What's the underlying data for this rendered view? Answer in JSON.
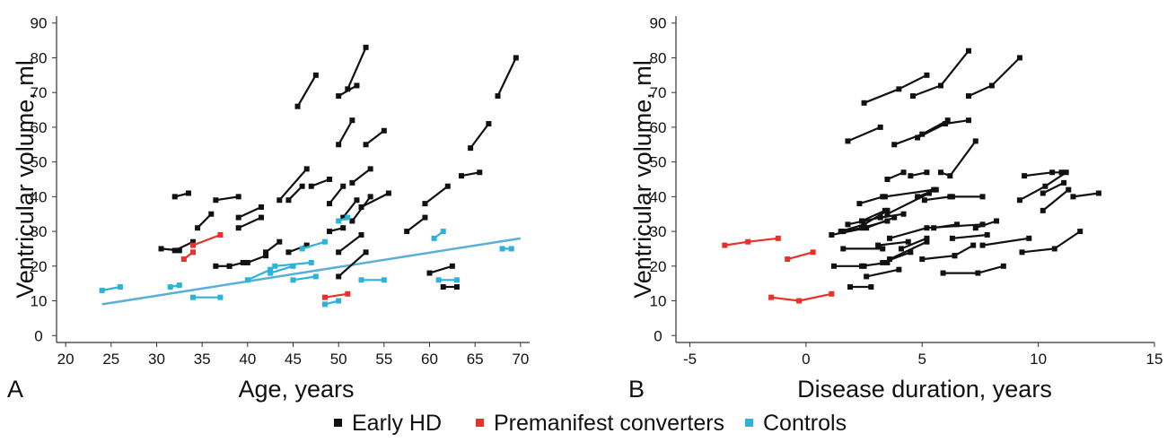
{
  "colors": {
    "early": "#111111",
    "converter": "#e8312a",
    "control": "#2cb3d9",
    "trend": "#5aafd9",
    "axis": "#333333"
  },
  "legend": [
    {
      "key": "early",
      "label": "Early HD"
    },
    {
      "key": "converter",
      "label": "Premanifest converters"
    },
    {
      "key": "control",
      "label": "Controls"
    }
  ],
  "chart_data": [
    {
      "type": "line",
      "panel_label": "A",
      "xlabel": "Age, years",
      "ylabel": "Ventricular volume, ml",
      "xlim": [
        19,
        71
      ],
      "ylim": [
        -2,
        92
      ],
      "xticks": [
        20,
        25,
        30,
        35,
        40,
        45,
        50,
        55,
        60,
        65,
        70
      ],
      "yticks": [
        0,
        10,
        20,
        30,
        40,
        50,
        60,
        70,
        80,
        90
      ],
      "trend_line": {
        "group": "control",
        "x": [
          24,
          70
        ],
        "y": [
          9,
          28
        ]
      },
      "series": [
        {
          "group": "early",
          "x": [
            30.5,
            32.5
          ],
          "y": [
            25,
            24.5
          ]
        },
        {
          "group": "early",
          "x": [
            32,
            34
          ],
          "y": [
            24.5,
            27
          ]
        },
        {
          "group": "early",
          "x": [
            32,
            33.5
          ],
          "y": [
            40,
            41
          ]
        },
        {
          "group": "early",
          "x": [
            34.5,
            36
          ],
          "y": [
            31,
            35
          ]
        },
        {
          "group": "early",
          "x": [
            36.5,
            38
          ],
          "y": [
            20,
            20
          ]
        },
        {
          "group": "early",
          "x": [
            38,
            39.5
          ],
          "y": [
            20,
            21
          ]
        },
        {
          "group": "early",
          "x": [
            36.5,
            39
          ],
          "y": [
            39,
            40
          ]
        },
        {
          "group": "early",
          "x": [
            39,
            41.5
          ],
          "y": [
            34,
            37
          ]
        },
        {
          "group": "early",
          "x": [
            39,
            41.5
          ],
          "y": [
            31,
            34
          ]
        },
        {
          "group": "early",
          "x": [
            40,
            42
          ],
          "y": [
            21,
            23
          ]
        },
        {
          "group": "early",
          "x": [
            42,
            43.5
          ],
          "y": [
            24,
            27
          ]
        },
        {
          "group": "early",
          "x": [
            43.5,
            46.5
          ],
          "y": [
            39,
            48
          ]
        },
        {
          "group": "early",
          "x": [
            44.5,
            46
          ],
          "y": [
            39,
            43
          ]
        },
        {
          "group": "early",
          "x": [
            44.5,
            46.5
          ],
          "y": [
            24,
            26
          ]
        },
        {
          "group": "early",
          "x": [
            45.5,
            47.5
          ],
          "y": [
            66,
            75
          ]
        },
        {
          "group": "early",
          "x": [
            47,
            49
          ],
          "y": [
            43,
            45
          ]
        },
        {
          "group": "early",
          "x": [
            49,
            50.5
          ],
          "y": [
            30,
            31
          ]
        },
        {
          "group": "early",
          "x": [
            49,
            50.5
          ],
          "y": [
            38,
            43
          ]
        },
        {
          "group": "early",
          "x": [
            50,
            51.5
          ],
          "y": [
            55,
            62
          ]
        },
        {
          "group": "early",
          "x": [
            50,
            52
          ],
          "y": [
            69,
            72
          ]
        },
        {
          "group": "early",
          "x": [
            51,
            53
          ],
          "y": [
            71,
            83
          ]
        },
        {
          "group": "early",
          "x": [
            50.5,
            52
          ],
          "y": [
            34,
            39
          ]
        },
        {
          "group": "early",
          "x": [
            50,
            52.5
          ],
          "y": [
            24,
            29
          ]
        },
        {
          "group": "early",
          "x": [
            50,
            53
          ],
          "y": [
            17,
            24
          ]
        },
        {
          "group": "early",
          "x": [
            51.5,
            53.5
          ],
          "y": [
            44,
            48
          ]
        },
        {
          "group": "early",
          "x": [
            51.5,
            53.5
          ],
          "y": [
            33,
            40
          ]
        },
        {
          "group": "early",
          "x": [
            52.5,
            55.5
          ],
          "y": [
            37,
            41
          ]
        },
        {
          "group": "early",
          "x": [
            53,
            55
          ],
          "y": [
            55,
            59
          ]
        },
        {
          "group": "early",
          "x": [
            57.5,
            59.5
          ],
          "y": [
            30,
            34
          ]
        },
        {
          "group": "early",
          "x": [
            59.5,
            62
          ],
          "y": [
            38,
            43
          ]
        },
        {
          "group": "early",
          "x": [
            60,
            62.5
          ],
          "y": [
            18,
            20
          ]
        },
        {
          "group": "early",
          "x": [
            61.5,
            63
          ],
          "y": [
            14,
            14
          ]
        },
        {
          "group": "early",
          "x": [
            63.5,
            65.5
          ],
          "y": [
            46,
            47
          ]
        },
        {
          "group": "early",
          "x": [
            64.5,
            66.5
          ],
          "y": [
            54,
            61
          ]
        },
        {
          "group": "early",
          "x": [
            67.5,
            69.5
          ],
          "y": [
            69,
            80
          ]
        },
        {
          "group": "converter",
          "x": [
            33,
            34
          ],
          "y": [
            22,
            24
          ]
        },
        {
          "group": "converter",
          "x": [
            34,
            37
          ],
          "y": [
            26,
            29
          ]
        },
        {
          "group": "converter",
          "x": [
            48.5,
            51
          ],
          "y": [
            11,
            12
          ]
        },
        {
          "group": "control",
          "x": [
            24,
            26
          ],
          "y": [
            13,
            14
          ]
        },
        {
          "group": "control",
          "x": [
            31.5,
            32.5
          ],
          "y": [
            14,
            14.5
          ]
        },
        {
          "group": "control",
          "x": [
            34,
            37
          ],
          "y": [
            11,
            11
          ]
        },
        {
          "group": "control",
          "x": [
            40,
            42.5
          ],
          "y": [
            16,
            19
          ]
        },
        {
          "group": "control",
          "x": [
            42.5,
            45
          ],
          "y": [
            18,
            20
          ]
        },
        {
          "group": "control",
          "x": [
            43,
            47
          ],
          "y": [
            20,
            21
          ]
        },
        {
          "group": "control",
          "x": [
            45,
            47.5
          ],
          "y": [
            16,
            17
          ]
        },
        {
          "group": "control",
          "x": [
            46,
            48.5
          ],
          "y": [
            25,
            27
          ]
        },
        {
          "group": "control",
          "x": [
            48.5,
            50
          ],
          "y": [
            9,
            10
          ]
        },
        {
          "group": "control",
          "x": [
            50,
            51
          ],
          "y": [
            33,
            34
          ]
        },
        {
          "group": "control",
          "x": [
            52.5,
            55
          ],
          "y": [
            16,
            16
          ]
        },
        {
          "group": "control",
          "x": [
            61,
            63
          ],
          "y": [
            16,
            16
          ]
        },
        {
          "group": "control",
          "x": [
            60.5,
            61.5
          ],
          "y": [
            28,
            30
          ]
        },
        {
          "group": "control",
          "x": [
            68,
            69
          ],
          "y": [
            25,
            25
          ]
        }
      ]
    },
    {
      "type": "line",
      "panel_label": "B",
      "xlabel": "Disease duration, years",
      "ylabel": "Ventricular volume, ml",
      "xlim": [
        -5.6,
        15
      ],
      "ylim": [
        -2,
        92
      ],
      "xticks": [
        -5,
        0,
        5,
        10,
        15
      ],
      "yticks": [
        0,
        10,
        20,
        30,
        40,
        50,
        60,
        70,
        80,
        90
      ],
      "series": [
        {
          "group": "early",
          "x": [
            1.8,
            3.2
          ],
          "y": [
            56,
            60
          ]
        },
        {
          "group": "early",
          "x": [
            2.5,
            4,
            5.2
          ],
          "y": [
            67,
            71,
            75
          ]
        },
        {
          "group": "early",
          "x": [
            4.6,
            5.8,
            7
          ],
          "y": [
            69,
            72,
            82
          ]
        },
        {
          "group": "early",
          "x": [
            7,
            8,
            9.2
          ],
          "y": [
            69,
            72,
            80
          ]
        },
        {
          "group": "early",
          "x": [
            3.8,
            5,
            6.1
          ],
          "y": [
            55,
            58,
            62
          ]
        },
        {
          "group": "early",
          "x": [
            4.8,
            6,
            7
          ],
          "y": [
            57,
            61,
            62
          ]
        },
        {
          "group": "early",
          "x": [
            4.5,
            5.2
          ],
          "y": [
            46,
            47
          ]
        },
        {
          "group": "early",
          "x": [
            5.8,
            6.2,
            7.3
          ],
          "y": [
            47,
            46,
            56
          ]
        },
        {
          "group": "early",
          "x": [
            3.5,
            4.2
          ],
          "y": [
            45,
            47
          ]
        },
        {
          "group": "early",
          "x": [
            9.4,
            10.6,
            11
          ],
          "y": [
            46,
            47,
            47
          ]
        },
        {
          "group": "early",
          "x": [
            9.2,
            10.3,
            11.2
          ],
          "y": [
            39,
            43,
            47
          ]
        },
        {
          "group": "early",
          "x": [
            10.2,
            11.1
          ],
          "y": [
            41,
            44
          ]
        },
        {
          "group": "early",
          "x": [
            10.2,
            11.3
          ],
          "y": [
            36,
            42
          ]
        },
        {
          "group": "early",
          "x": [
            11.5,
            12.6
          ],
          "y": [
            40,
            41
          ]
        },
        {
          "group": "early",
          "x": [
            2.3,
            3.3
          ],
          "y": [
            38,
            40
          ]
        },
        {
          "group": "early",
          "x": [
            3.4,
            5.5
          ],
          "y": [
            40,
            42
          ]
        },
        {
          "group": "early",
          "x": [
            4.8,
            5.6
          ],
          "y": [
            40,
            42
          ]
        },
        {
          "group": "early",
          "x": [
            5.1,
            6.2
          ],
          "y": [
            39,
            40
          ]
        },
        {
          "group": "early",
          "x": [
            3.5,
            5.3
          ],
          "y": [
            35,
            41
          ]
        },
        {
          "group": "early",
          "x": [
            1.5,
            2.5,
            3.5
          ],
          "y": [
            30,
            32,
            36
          ]
        },
        {
          "group": "early",
          "x": [
            1.8,
            3.2,
            4.2
          ],
          "y": [
            32,
            34,
            35
          ]
        },
        {
          "group": "early",
          "x": [
            2.4,
            3.4
          ],
          "y": [
            33,
            36
          ]
        },
        {
          "group": "early",
          "x": [
            3.6,
            5.2,
            7.6
          ],
          "y": [
            28,
            31,
            32
          ]
        },
        {
          "group": "early",
          "x": [
            1.6,
            2.4,
            3.5
          ],
          "y": [
            30,
            31,
            33
          ]
        },
        {
          "group": "early",
          "x": [
            1.1,
            2.6,
            3.8
          ],
          "y": [
            29,
            31,
            34
          ]
        },
        {
          "group": "early",
          "x": [
            5.5,
            6.5
          ],
          "y": [
            31,
            32
          ]
        },
        {
          "group": "early",
          "x": [
            6.3,
            7.6
          ],
          "y": [
            40,
            40
          ]
        },
        {
          "group": "early",
          "x": [
            7.3,
            8.2
          ],
          "y": [
            31,
            33
          ]
        },
        {
          "group": "early",
          "x": [
            7.6,
            9.6
          ],
          "y": [
            26,
            28
          ]
        },
        {
          "group": "early",
          "x": [
            3.1,
            4.4
          ],
          "y": [
            26,
            27
          ]
        },
        {
          "group": "early",
          "x": [
            3.6,
            5.2
          ],
          "y": [
            22,
            27
          ]
        },
        {
          "group": "early",
          "x": [
            1.6,
            3.3
          ],
          "y": [
            25,
            25
          ]
        },
        {
          "group": "early",
          "x": [
            3.3,
            4.5
          ],
          "y": [
            21,
            24
          ]
        },
        {
          "group": "early",
          "x": [
            1.2,
            2.5
          ],
          "y": [
            20,
            20
          ]
        },
        {
          "group": "early",
          "x": [
            2.4,
            3.5
          ],
          "y": [
            20,
            21
          ]
        },
        {
          "group": "early",
          "x": [
            2.6,
            4
          ],
          "y": [
            17,
            19
          ]
        },
        {
          "group": "early",
          "x": [
            1.9,
            2.8
          ],
          "y": [
            14,
            14
          ]
        },
        {
          "group": "early",
          "x": [
            5,
            6.4
          ],
          "y": [
            22,
            23
          ]
        },
        {
          "group": "early",
          "x": [
            6.4,
            7.2
          ],
          "y": [
            23,
            26
          ]
        },
        {
          "group": "early",
          "x": [
            6.3,
            7.8
          ],
          "y": [
            28,
            29
          ]
        },
        {
          "group": "early",
          "x": [
            5.9,
            7.4,
            8.5
          ],
          "y": [
            18,
            18,
            20
          ]
        },
        {
          "group": "early",
          "x": [
            9.3,
            10.7,
            11.8
          ],
          "y": [
            24,
            25,
            30
          ]
        },
        {
          "group": "early",
          "x": [
            4.1,
            5.2
          ],
          "y": [
            25,
            28
          ]
        },
        {
          "group": "converter",
          "x": [
            -3.5,
            -2.5,
            -1.2
          ],
          "y": [
            26,
            27,
            28
          ]
        },
        {
          "group": "converter",
          "x": [
            -0.8,
            0.3
          ],
          "y": [
            22,
            24
          ]
        },
        {
          "group": "converter",
          "x": [
            -1.5,
            -0.3,
            1.1
          ],
          "y": [
            11,
            10,
            12
          ]
        }
      ]
    }
  ]
}
